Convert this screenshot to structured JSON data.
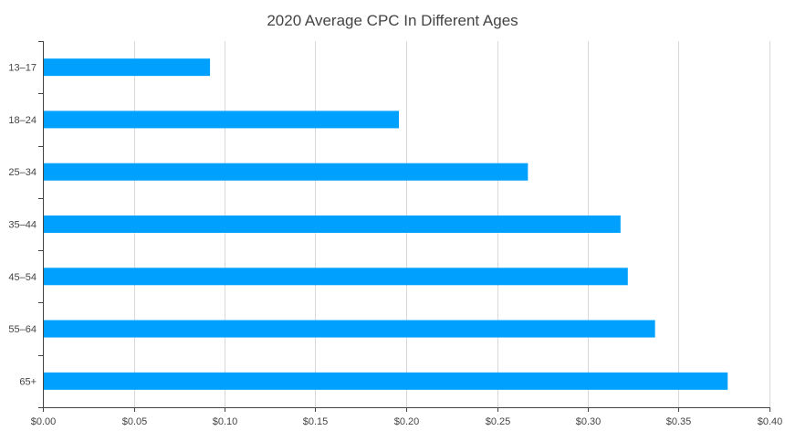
{
  "chart_data": {
    "type": "bar",
    "orientation": "horizontal",
    "title": "2020 Average CPC In Different Ages",
    "xlabel": "",
    "ylabel": "",
    "categories": [
      "13–17",
      "18–24",
      "25–34",
      "35–44",
      "45–54",
      "55–64",
      "65+"
    ],
    "values": [
      0.092,
      0.196,
      0.267,
      0.318,
      0.322,
      0.337,
      0.377
    ],
    "xlim": [
      0,
      0.4
    ],
    "x_ticks": [
      0,
      0.05,
      0.1,
      0.15,
      0.2,
      0.25,
      0.3,
      0.35,
      0.4
    ],
    "x_tick_labels": [
      "$0.00",
      "$0.05",
      "$0.10",
      "$0.15",
      "$0.20",
      "$0.25",
      "$0.30",
      "$0.35",
      "$0.40"
    ],
    "grid": true,
    "legend": "none",
    "bar_color": "#00a0ff",
    "grid_color": "#d8d8d8",
    "axis_color": "#444444"
  }
}
